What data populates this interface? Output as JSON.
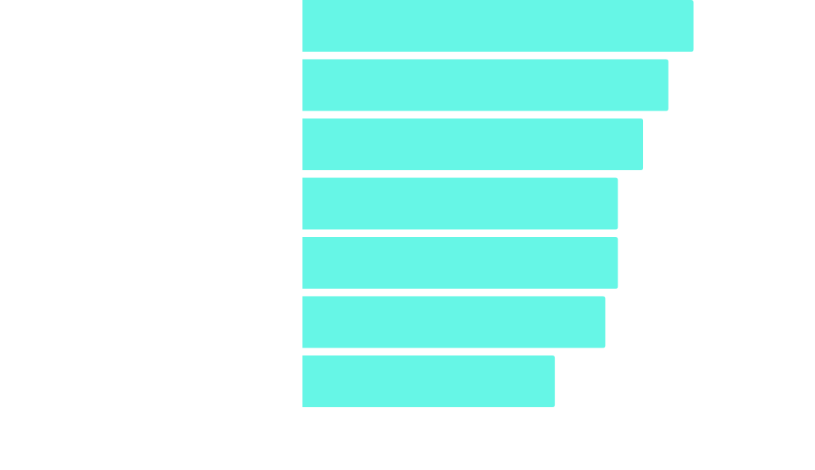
{
  "chart_data": {
    "type": "bar",
    "orientation": "horizontal",
    "title": "",
    "xlabel": "",
    "ylabel": "",
    "categories": [
      "",
      "",
      "",
      "",
      "",
      "",
      ""
    ],
    "values": [
      31,
      29,
      27,
      25,
      25,
      24,
      20
    ],
    "xlim": [
      0,
      34
    ],
    "grid": false,
    "legend": "none",
    "bar_color": "#66f6e6"
  }
}
